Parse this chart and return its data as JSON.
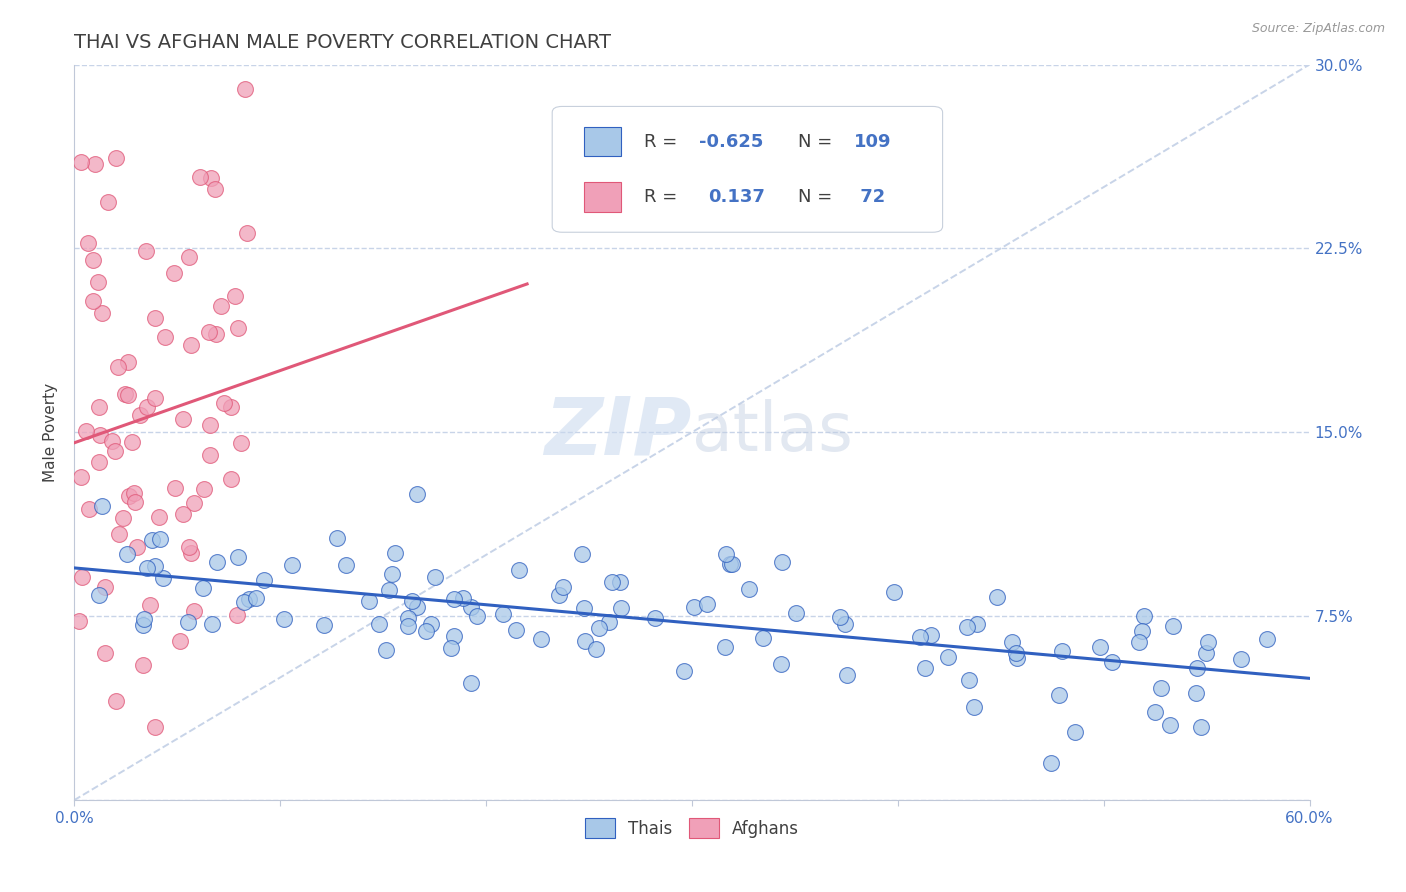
{
  "title": "THAI VS AFGHAN MALE POVERTY CORRELATION CHART",
  "source": "Source: ZipAtlas.com",
  "ylabel": "Male Poverty",
  "watermark_zip": "ZIP",
  "watermark_atlas": "atlas",
  "thais": {
    "R": -0.625,
    "N": 109,
    "color_scatter": "#a8c8e8",
    "color_line": "#3060c0",
    "label": "Thais"
  },
  "afghans": {
    "R": 0.137,
    "N": 72,
    "color_scatter": "#f0a0b8",
    "color_line": "#e05878",
    "label": "Afghans"
  },
  "x_min": 0.0,
  "x_max": 0.6,
  "y_min": 0.0,
  "y_max": 0.3,
  "y_ticks": [
    0.0,
    0.075,
    0.15,
    0.225,
    0.3
  ],
  "y_tick_labels": [
    "",
    "7.5%",
    "15.0%",
    "22.5%",
    "30.0%"
  ],
  "background_color": "#ffffff",
  "grid_color": "#c8d4e8",
  "title_color": "#404040",
  "tick_label_color": "#4472c4",
  "legend_text_color": "#4472c4",
  "legend_R_color": "#404040",
  "title_fontsize": 14,
  "axis_label_fontsize": 11,
  "tick_fontsize": 11,
  "legend_fontsize": 13
}
